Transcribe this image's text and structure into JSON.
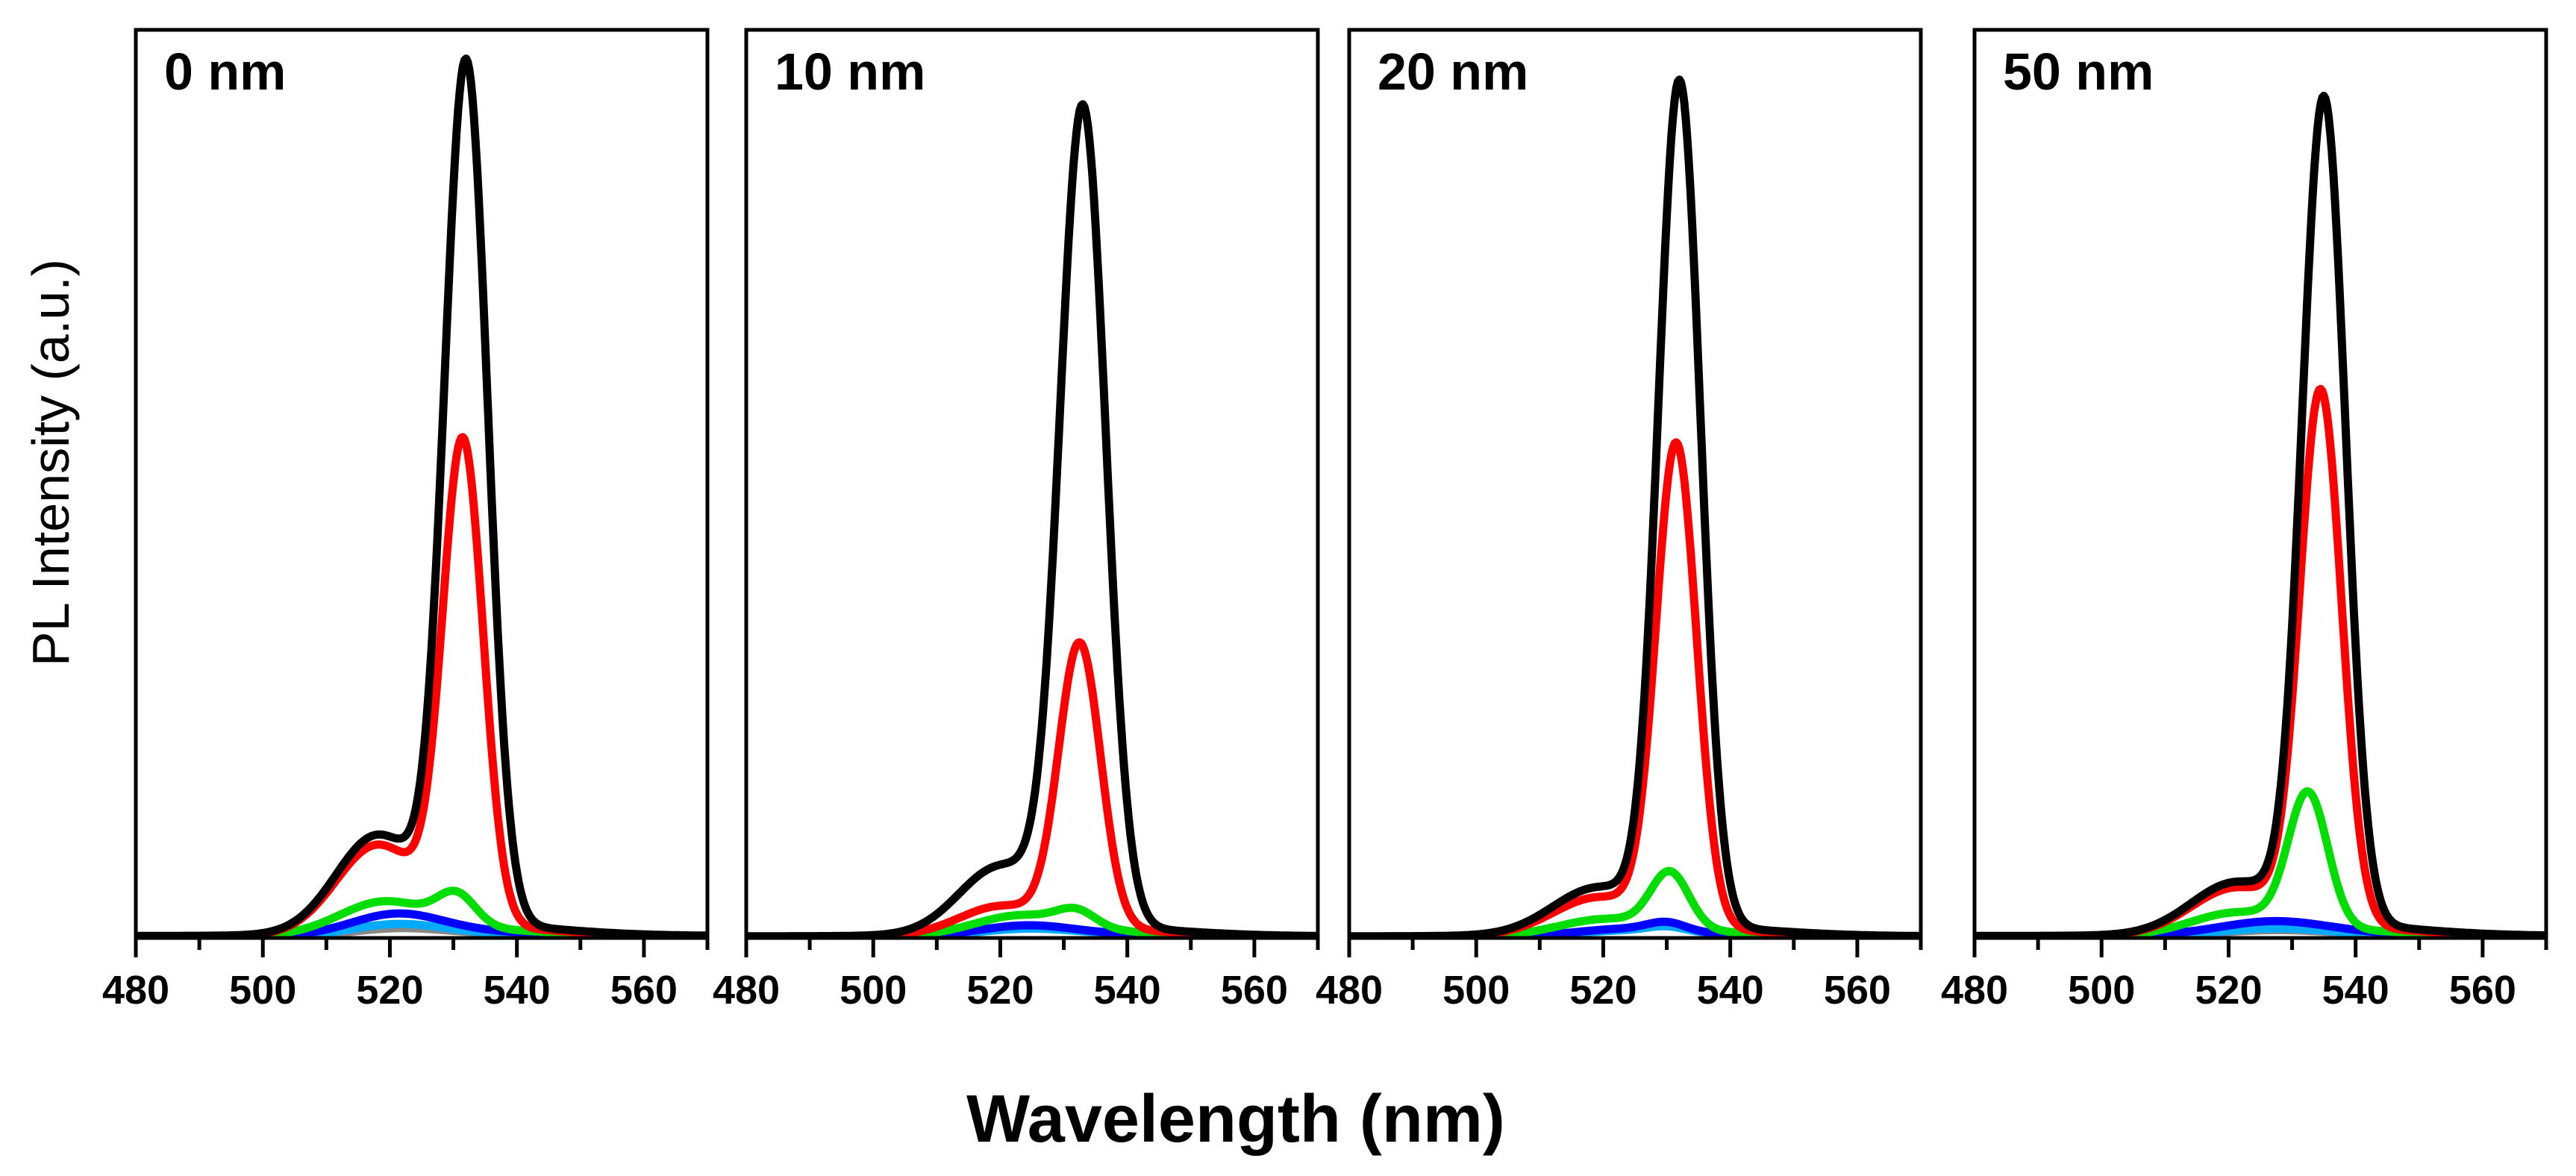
{
  "figure": {
    "xlabel": "Wavelength (nm)",
    "ylabel": "PL Intensity (a.u.)"
  },
  "chart_data": [
    {
      "type": "line",
      "title": "0 nm",
      "xlim": [
        480,
        570
      ],
      "ylim": [
        0,
        1.06
      ],
      "xticks": [
        480,
        500,
        520,
        540,
        560
      ],
      "series": [
        {
          "name": "black",
          "color": "#000000",
          "peak_x": 532.0,
          "peak_h": 1.0,
          "peak_w": 3.4,
          "shoulder_x": 518,
          "shoulder_h": 0.11,
          "shoulder_w": 6.5,
          "base": 0.006
        },
        {
          "name": "red",
          "color": "#ff0000",
          "peak_x": 531.5,
          "peak_h": 0.56,
          "peak_w": 3.2,
          "shoulder_x": 518,
          "shoulder_h": 0.1,
          "shoulder_w": 6.5,
          "base": 0.005
        },
        {
          "name": "green",
          "color": "#00dd00",
          "peak_x": 530.5,
          "peak_h": 0.035,
          "peak_w": 3.0,
          "shoulder_x": 519,
          "shoulder_h": 0.035,
          "shoulder_w": 7.0,
          "base": 0.004
        },
        {
          "name": "blue",
          "color": "#0000ff",
          "peak_x": 530.0,
          "peak_h": 0.0,
          "peak_w": 3.0,
          "shoulder_x": 521,
          "shoulder_h": 0.022,
          "shoulder_w": 7.0,
          "base": 0.003
        },
        {
          "name": "cyan",
          "color": "#00aaff",
          "peak_x": 530.0,
          "peak_h": 0.0,
          "peak_w": 3.0,
          "shoulder_x": 521,
          "shoulder_h": 0.012,
          "shoulder_w": 7.0,
          "base": 0.002
        },
        {
          "name": "gray",
          "color": "#888888",
          "peak_x": 530.0,
          "peak_h": 0.0,
          "peak_w": 3.0,
          "shoulder_x": 521,
          "shoulder_h": 0.007,
          "shoulder_w": 7.0,
          "base": 0.002
        }
      ]
    },
    {
      "type": "line",
      "title": "10 nm",
      "xlim": [
        480,
        570
      ],
      "ylim": [
        0,
        1.06
      ],
      "xticks": [
        480,
        500,
        520,
        540,
        560
      ],
      "series": [
        {
          "name": "black",
          "color": "#000000",
          "peak_x": 533.0,
          "peak_h": 0.95,
          "peak_w": 3.6,
          "shoulder_x": 520,
          "shoulder_h": 0.075,
          "shoulder_w": 6.5,
          "base": 0.005
        },
        {
          "name": "red",
          "color": "#ff0000",
          "peak_x": 532.5,
          "peak_h": 0.33,
          "peak_w": 3.3,
          "shoulder_x": 520,
          "shoulder_h": 0.03,
          "shoulder_w": 6.5,
          "base": 0.004
        },
        {
          "name": "green",
          "color": "#00dd00",
          "peak_x": 532.0,
          "peak_h": 0.018,
          "peak_w": 3.0,
          "shoulder_x": 523,
          "shoulder_h": 0.02,
          "shoulder_w": 7.0,
          "base": 0.003
        },
        {
          "name": "blue",
          "color": "#0000ff",
          "peak_x": 530.0,
          "peak_h": 0.0,
          "peak_w": 3.0,
          "shoulder_x": 524,
          "shoulder_h": 0.01,
          "shoulder_w": 7.0,
          "base": 0.002
        },
        {
          "name": "cyan",
          "color": "#00aaff",
          "peak_x": 530.0,
          "peak_h": 0.0,
          "peak_w": 3.0,
          "shoulder_x": 524,
          "shoulder_h": 0.006,
          "shoulder_w": 7.0,
          "base": 0.002
        }
      ]
    },
    {
      "type": "line",
      "title": "20 nm",
      "xlim": [
        480,
        570
      ],
      "ylim": [
        0,
        1.06
      ],
      "xticks": [
        480,
        500,
        520,
        540,
        560
      ],
      "series": [
        {
          "name": "black",
          "color": "#000000",
          "peak_x": 532.0,
          "peak_h": 0.98,
          "peak_w": 3.3,
          "shoulder_x": 519,
          "shoulder_h": 0.05,
          "shoulder_w": 7.0,
          "base": 0.005
        },
        {
          "name": "red",
          "color": "#ff0000",
          "peak_x": 531.5,
          "peak_h": 0.56,
          "peak_w": 3.2,
          "shoulder_x": 519,
          "shoulder_h": 0.04,
          "shoulder_w": 7.0,
          "base": 0.004
        },
        {
          "name": "green",
          "color": "#00dd00",
          "peak_x": 530.5,
          "peak_h": 0.065,
          "peak_w": 3.0,
          "shoulder_x": 520,
          "shoulder_h": 0.016,
          "shoulder_w": 7.0,
          "base": 0.003
        },
        {
          "name": "blue",
          "color": "#0000ff",
          "peak_x": 530.0,
          "peak_h": 0.01,
          "peak_w": 3.0,
          "shoulder_x": 523,
          "shoulder_h": 0.006,
          "shoulder_w": 7.0,
          "base": 0.002
        },
        {
          "name": "cyan",
          "color": "#00aaff",
          "peak_x": 530.0,
          "peak_h": 0.006,
          "peak_w": 3.0,
          "shoulder_x": 523,
          "shoulder_h": 0.004,
          "shoulder_w": 7.0,
          "base": 0.002
        }
      ]
    },
    {
      "type": "line",
      "title": "50 nm",
      "xlim": [
        480,
        570
      ],
      "ylim": [
        0,
        1.06
      ],
      "xticks": [
        480,
        500,
        520,
        540,
        560
      ],
      "series": [
        {
          "name": "black",
          "color": "#000000",
          "peak_x": 535.0,
          "peak_h": 0.96,
          "peak_w": 3.4,
          "shoulder_x": 521,
          "shoulder_h": 0.055,
          "shoulder_w": 7.0,
          "base": 0.006
        },
        {
          "name": "red",
          "color": "#ff0000",
          "peak_x": 534.5,
          "peak_h": 0.62,
          "peak_w": 3.3,
          "shoulder_x": 521,
          "shoulder_h": 0.05,
          "shoulder_w": 7.0,
          "base": 0.005
        },
        {
          "name": "green",
          "color": "#00dd00",
          "peak_x": 532.5,
          "peak_h": 0.155,
          "peak_w": 3.1,
          "shoulder_x": 521,
          "shoulder_h": 0.022,
          "shoulder_w": 7.0,
          "base": 0.004
        },
        {
          "name": "blue",
          "color": "#0000ff",
          "peak_x": 530.0,
          "peak_h": 0.0,
          "peak_w": 3.0,
          "shoulder_x": 527,
          "shoulder_h": 0.012,
          "shoulder_w": 8.0,
          "base": 0.003
        },
        {
          "name": "cyan",
          "color": "#00aaff",
          "peak_x": 530.0,
          "peak_h": 0.0,
          "peak_w": 3.0,
          "shoulder_x": 527,
          "shoulder_h": 0.006,
          "shoulder_w": 8.0,
          "base": 0.002
        },
        {
          "name": "gray",
          "color": "#888888",
          "peak_x": 530.0,
          "peak_h": 0.0,
          "peak_w": 3.0,
          "shoulder_x": 527,
          "shoulder_h": 0.004,
          "shoulder_w": 8.0,
          "base": 0.002
        }
      ]
    }
  ]
}
